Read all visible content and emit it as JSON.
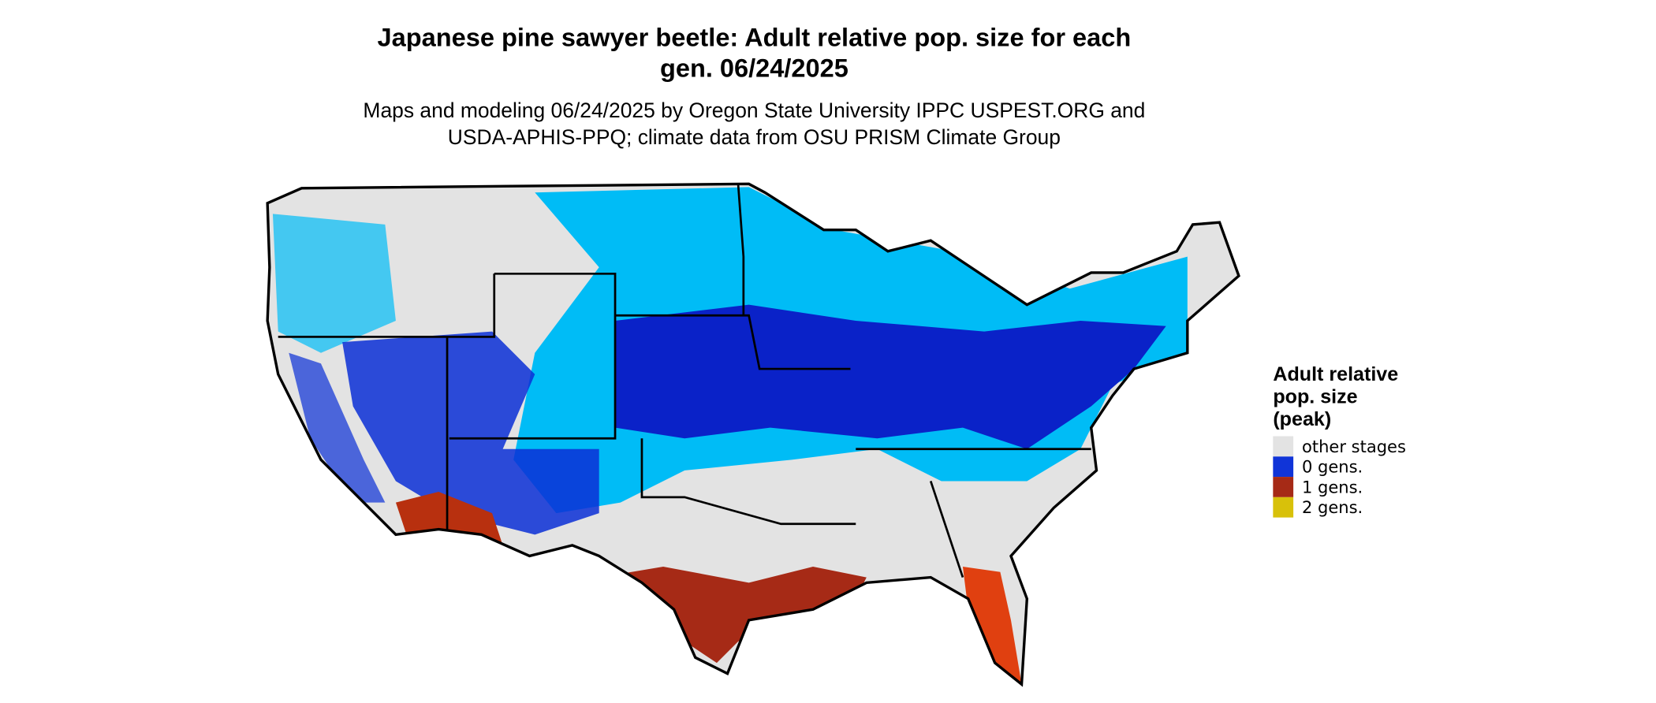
{
  "title": [
    "Japanese pine sawyer beetle: Adult relative pop. size for each",
    "gen. 06/24/2025"
  ],
  "subtitle": [
    "Maps and modeling 06/24/2025 by Oregon State University IPPC USPEST.ORG and",
    "USDA-APHIS-PPQ; climate data from OSU PRISM Climate Group"
  ],
  "legend": {
    "title": [
      "Adult relative",
      "pop. size",
      "(peak)"
    ],
    "items": [
      {
        "label": "other stages",
        "color": "#e3e3e3"
      },
      {
        "label": "0 gens.",
        "color": "#1034d8"
      },
      {
        "label": "1 gens.",
        "color": "#a62a16"
      },
      {
        "label": "2 gens.",
        "color": "#d8c10a"
      }
    ]
  }
}
